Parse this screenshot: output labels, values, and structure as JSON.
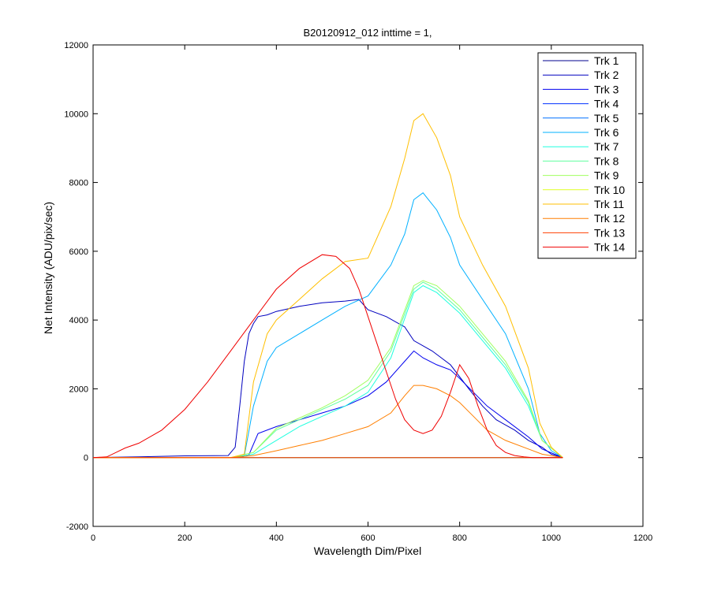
{
  "chart_data": {
    "type": "line",
    "title": "B20120912_012 inttime = 1,",
    "xlabel": "Wavelength Dim/Pixel",
    "ylabel": "Net Intensity (ADU/pix/sec)",
    "xlim": [
      0,
      1200
    ],
    "ylim": [
      -2000,
      12000
    ],
    "xticks": [
      0,
      200,
      400,
      600,
      800,
      1000,
      1200
    ],
    "yticks": [
      -2000,
      0,
      2000,
      4000,
      6000,
      8000,
      10000,
      12000
    ],
    "legend_position": "top-right",
    "series": [
      {
        "name": "Trk 1",
        "color": "#00008f",
        "x": [
          0,
          100,
          200,
          300,
          500,
          700,
          900,
          1025
        ],
        "y": [
          0,
          0,
          0,
          0,
          0,
          0,
          0,
          0
        ]
      },
      {
        "name": "Trk 2",
        "color": "#0000bf",
        "x": [
          0,
          100,
          200,
          295,
          310,
          320,
          330,
          340,
          350,
          360,
          380,
          400,
          450,
          500,
          550,
          580,
          600,
          640,
          680,
          700,
          740,
          780,
          820,
          850,
          880,
          920,
          950,
          980,
          1000,
          1025
        ],
        "y": [
          0,
          20,
          50,
          60,
          300,
          1500,
          2800,
          3600,
          3900,
          4100,
          4150,
          4250,
          4400,
          4500,
          4550,
          4600,
          4300,
          4100,
          3800,
          3400,
          3100,
          2700,
          2000,
          1500,
          1100,
          800,
          500,
          300,
          100,
          0
        ]
      },
      {
        "name": "Trk 3",
        "color": "#0000ef",
        "x": [
          0,
          200,
          320,
          340,
          360,
          400,
          450,
          500,
          550,
          600,
          640,
          680,
          700,
          720,
          750,
          780,
          800,
          830,
          860,
          900,
          950,
          980,
          1025
        ],
        "y": [
          0,
          0,
          0,
          80,
          700,
          900,
          1100,
          1300,
          1500,
          1800,
          2200,
          2800,
          3100,
          2900,
          2700,
          2550,
          2300,
          1900,
          1500,
          1100,
          600,
          250,
          0
        ]
      },
      {
        "name": "Trk 4",
        "color": "#0030ff",
        "x": [
          0,
          1025
        ],
        "y": [
          0,
          0
        ]
      },
      {
        "name": "Trk 5",
        "color": "#0070ff",
        "x": [
          0,
          1025
        ],
        "y": [
          0,
          0
        ]
      },
      {
        "name": "Trk 6",
        "color": "#00b0ff",
        "x": [
          0,
          300,
          330,
          350,
          380,
          400,
          450,
          500,
          550,
          600,
          650,
          680,
          700,
          720,
          750,
          780,
          800,
          850,
          900,
          950,
          975,
          1000,
          1025
        ],
        "y": [
          0,
          0,
          50,
          1500,
          2800,
          3200,
          3600,
          4000,
          4400,
          4700,
          5600,
          6500,
          7500,
          7700,
          7200,
          6400,
          5600,
          4600,
          3600,
          2000,
          700,
          200,
          0
        ]
      },
      {
        "name": "Trk 7",
        "color": "#20ffdf",
        "x": [
          0,
          300,
          350,
          400,
          450,
          500,
          550,
          600,
          650,
          700,
          720,
          750,
          800,
          850,
          900,
          950,
          980,
          1025
        ],
        "y": [
          0,
          0,
          100,
          500,
          900,
          1200,
          1500,
          1900,
          2900,
          4800,
          5000,
          4800,
          4200,
          3400,
          2600,
          1500,
          500,
          0
        ]
      },
      {
        "name": "Trk 8",
        "color": "#60ff9f",
        "x": [
          0,
          300,
          350,
          400,
          450,
          500,
          550,
          600,
          650,
          700,
          720,
          750,
          800,
          850,
          900,
          950,
          980,
          1025
        ],
        "y": [
          0,
          0,
          150,
          800,
          1100,
          1400,
          1700,
          2100,
          3100,
          4900,
          5100,
          4900,
          4300,
          3500,
          2700,
          1600,
          500,
          0
        ]
      },
      {
        "name": "Trk 9",
        "color": "#a0ff5f",
        "x": [
          0,
          300,
          350,
          400,
          450,
          500,
          550,
          600,
          650,
          700,
          720,
          750,
          800,
          850,
          900,
          950,
          980,
          1025
        ],
        "y": [
          0,
          0,
          150,
          850,
          1150,
          1450,
          1800,
          2250,
          3200,
          5000,
          5150,
          5000,
          4400,
          3600,
          2800,
          1650,
          500,
          0
        ]
      },
      {
        "name": "Trk 10",
        "color": "#dfff20",
        "x": [
          0,
          1025
        ],
        "y": [
          0,
          0
        ]
      },
      {
        "name": "Trk 11",
        "color": "#ffbf00",
        "x": [
          0,
          300,
          330,
          350,
          380,
          400,
          450,
          500,
          550,
          600,
          650,
          680,
          700,
          720,
          750,
          780,
          800,
          850,
          900,
          950,
          975,
          1000,
          1025
        ],
        "y": [
          0,
          0,
          100,
          2200,
          3600,
          4000,
          4600,
          5200,
          5700,
          5800,
          7300,
          8700,
          9800,
          10000,
          9300,
          8200,
          7000,
          5600,
          4400,
          2600,
          1000,
          300,
          0
        ]
      },
      {
        "name": "Trk 12",
        "color": "#ff7f00",
        "x": [
          0,
          300,
          350,
          400,
          450,
          500,
          550,
          600,
          650,
          680,
          700,
          720,
          750,
          780,
          800,
          830,
          860,
          900,
          950,
          980,
          1025
        ],
        "y": [
          0,
          0,
          60,
          200,
          350,
          500,
          700,
          900,
          1300,
          1800,
          2100,
          2100,
          2000,
          1800,
          1600,
          1200,
          800,
          500,
          250,
          100,
          0
        ]
      },
      {
        "name": "Trk 13",
        "color": "#ff3f00",
        "x": [
          0,
          1025
        ],
        "y": [
          0,
          0
        ]
      },
      {
        "name": "Trk 14",
        "color": "#ef0000",
        "x": [
          0,
          30,
          50,
          70,
          100,
          150,
          200,
          250,
          300,
          350,
          400,
          450,
          500,
          530,
          560,
          580,
          600,
          620,
          640,
          660,
          680,
          700,
          720,
          740,
          760,
          780,
          800,
          820,
          840,
          860,
          880,
          900,
          920,
          940,
          960,
          980,
          1000,
          1025
        ],
        "y": [
          0,
          20,
          150,
          280,
          420,
          800,
          1400,
          2200,
          3100,
          4000,
          4900,
          5500,
          5900,
          5850,
          5500,
          4900,
          4100,
          3300,
          2500,
          1700,
          1100,
          800,
          700,
          800,
          1200,
          1900,
          2700,
          2300,
          1500,
          800,
          350,
          150,
          60,
          20,
          0,
          0,
          0,
          0
        ]
      }
    ]
  }
}
